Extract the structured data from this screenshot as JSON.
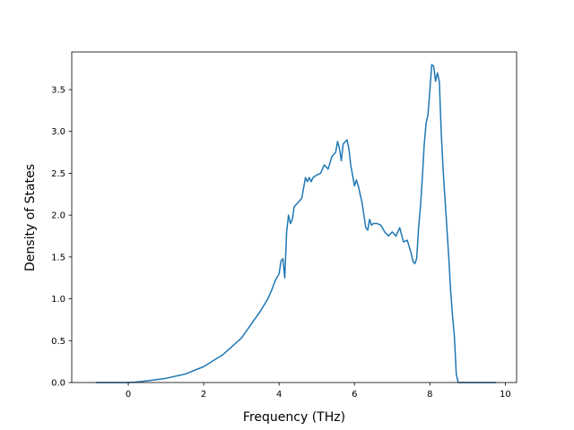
{
  "chart_data": {
    "type": "line",
    "title": "",
    "xlabel": "Frequency (THz)",
    "ylabel": "Density of States",
    "xlim": [
      -1.5,
      10.3
    ],
    "ylim": [
      0.0,
      3.95
    ],
    "xticks": [
      0,
      2,
      4,
      6,
      8,
      10
    ],
    "yticks": [
      0.0,
      0.5,
      1.0,
      1.5,
      2.0,
      2.5,
      3.0,
      3.5
    ],
    "xtick_labels": [
      "0",
      "2",
      "4",
      "6",
      "8",
      "10"
    ],
    "ytick_labels": [
      "0.0",
      "0.5",
      "1.0",
      "1.5",
      "2.0",
      "2.5",
      "3.0",
      "3.5"
    ],
    "grid": false,
    "legend": "none",
    "series": [
      {
        "color": "#1f77b4",
        "x": [
          -0.85,
          -0.5,
          0.0,
          0.2,
          0.5,
          1.0,
          1.5,
          2.0,
          2.5,
          3.0,
          3.5,
          3.7,
          3.8,
          3.9,
          4.0,
          4.05,
          4.1,
          4.15,
          4.2,
          4.25,
          4.3,
          4.35,
          4.4,
          4.5,
          4.6,
          4.7,
          4.75,
          4.8,
          4.85,
          4.9,
          5.0,
          5.1,
          5.2,
          5.3,
          5.4,
          5.5,
          5.55,
          5.6,
          5.65,
          5.7,
          5.8,
          5.85,
          5.9,
          6.0,
          6.05,
          6.1,
          6.2,
          6.3,
          6.35,
          6.4,
          6.45,
          6.5,
          6.6,
          6.7,
          6.8,
          6.9,
          7.0,
          7.1,
          7.2,
          7.3,
          7.4,
          7.5,
          7.55,
          7.6,
          7.65,
          7.7,
          7.75,
          7.8,
          7.85,
          7.9,
          7.95,
          8.0,
          8.05,
          8.1,
          8.15,
          8.2,
          8.25,
          8.3,
          8.35,
          8.4,
          8.45,
          8.5,
          8.55,
          8.6,
          8.65,
          8.7,
          8.75,
          8.8,
          8.85,
          8.9,
          9.0,
          9.5,
          9.75
        ],
        "y": [
          0.0,
          0.0,
          0.0,
          0.005,
          0.02,
          0.05,
          0.1,
          0.19,
          0.33,
          0.53,
          0.85,
          1.0,
          1.1,
          1.22,
          1.3,
          1.45,
          1.48,
          1.25,
          1.8,
          2.0,
          1.9,
          1.95,
          2.1,
          2.15,
          2.2,
          2.45,
          2.4,
          2.45,
          2.4,
          2.45,
          2.48,
          2.5,
          2.6,
          2.55,
          2.7,
          2.75,
          2.88,
          2.8,
          2.65,
          2.85,
          2.9,
          2.8,
          2.6,
          2.35,
          2.42,
          2.35,
          2.15,
          1.85,
          1.82,
          1.95,
          1.88,
          1.9,
          1.9,
          1.88,
          1.8,
          1.75,
          1.8,
          1.75,
          1.85,
          1.68,
          1.7,
          1.55,
          1.45,
          1.42,
          1.48,
          1.85,
          2.1,
          2.45,
          2.85,
          3.1,
          3.2,
          3.5,
          3.8,
          3.78,
          3.6,
          3.7,
          3.6,
          3.0,
          2.55,
          2.2,
          1.85,
          1.5,
          1.1,
          0.8,
          0.55,
          0.1,
          0.0,
          0.0,
          0.0,
          0.0,
          0.0,
          0.0,
          0.0
        ]
      }
    ]
  }
}
